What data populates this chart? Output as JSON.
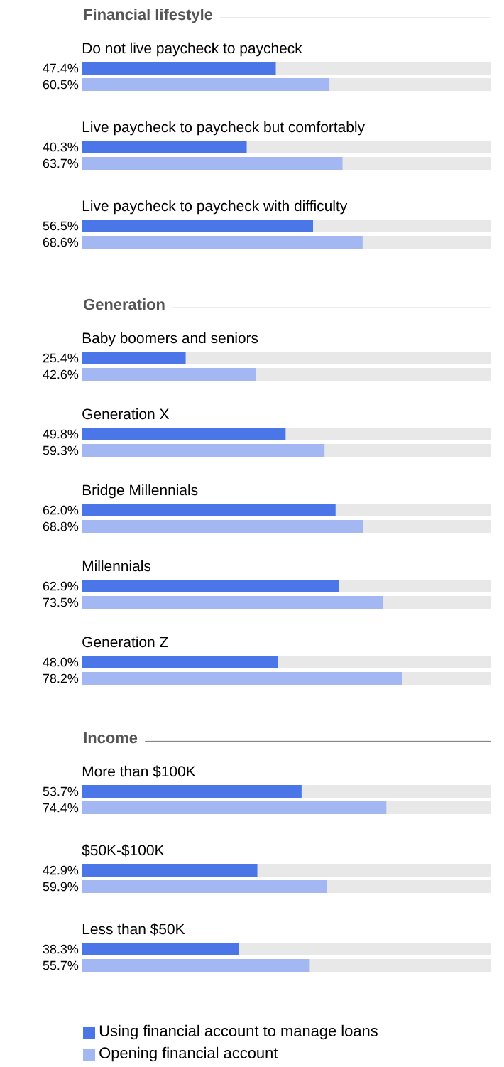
{
  "chart_data": [
    {
      "type": "bar",
      "orientation": "horizontal",
      "title": "Financial lifestyle",
      "categories": [
        "Do not live paycheck to paycheck",
        "Live paycheck to paycheck but comfortably",
        "Live paycheck to paycheck with difficulty"
      ],
      "xlim": [
        0,
        100
      ],
      "series": [
        {
          "color": "#4a76e8",
          "values": [
            47.4,
            40.3,
            56.5
          ],
          "value_labels": [
            "47.4%",
            "40.3%",
            "56.5%"
          ]
        },
        {
          "color": "#a3b8f3",
          "values": [
            60.5,
            63.7,
            68.6
          ],
          "value_labels": [
            "60.5%",
            "63.7%",
            "68.6%"
          ]
        }
      ]
    },
    {
      "type": "bar",
      "orientation": "horizontal",
      "title": "Generation",
      "categories": [
        "Baby boomers and seniors",
        "Generation X",
        "Bridge Millennials",
        "Millennials",
        "Generation Z"
      ],
      "xlim": [
        0,
        100
      ],
      "series": [
        {
          "color": "#4a76e8",
          "values": [
            25.4,
            49.8,
            62.0,
            62.9,
            48.0
          ],
          "value_labels": [
            "25.4%",
            "49.8%",
            "62.0%",
            "62.9%",
            "48.0%"
          ]
        },
        {
          "color": "#a3b8f3",
          "values": [
            42.6,
            59.3,
            68.8,
            73.5,
            78.2
          ],
          "value_labels": [
            "42.6%",
            "59.3%",
            "68.8%",
            "73.5%",
            "78.2%"
          ]
        }
      ]
    },
    {
      "type": "bar",
      "orientation": "horizontal",
      "title": "Income",
      "categories": [
        "More than $100K",
        "$50K-$100K",
        "Less than $50K"
      ],
      "xlim": [
        0,
        100
      ],
      "legend": "bottom",
      "series": [
        {
          "name": "Using financial account to manage loans",
          "color": "#4a76e8",
          "values": [
            53.7,
            42.9,
            38.3
          ],
          "value_labels": [
            "53.7%",
            "42.9%",
            "38.3%"
          ]
        },
        {
          "name": "Opening financial account",
          "color": "#a3b8f3",
          "values": [
            74.4,
            59.9,
            55.7
          ],
          "value_labels": [
            "74.4%",
            "59.9%",
            "55.7%"
          ]
        }
      ]
    }
  ]
}
